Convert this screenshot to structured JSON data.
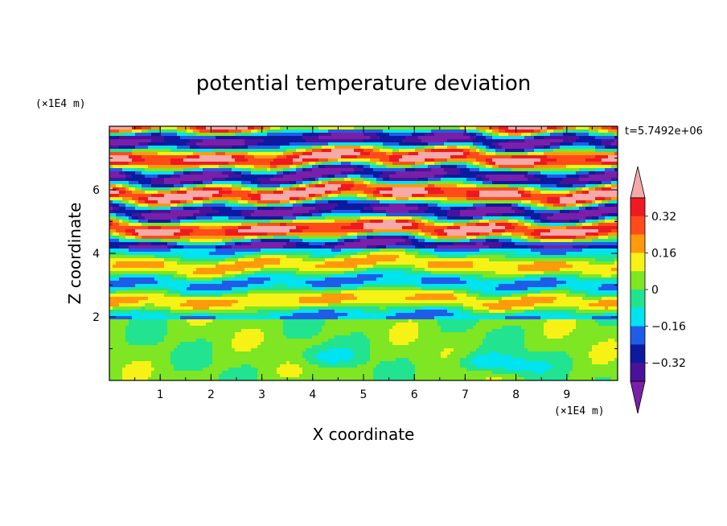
{
  "chart_data": {
    "type": "heatmap",
    "title": "potential temperature deviation",
    "xlabel": "X coordinate",
    "ylabel": "Z coordinate",
    "x_unit": "(×1E4 m)",
    "y_unit": "(×1E4 m)",
    "time_label": "t=5.7492e+06",
    "xlim": [
      0,
      10
    ],
    "ylim": [
      0,
      8
    ],
    "xticks": [
      "1",
      "2",
      "3",
      "4",
      "5",
      "6",
      "7",
      "8",
      "9"
    ],
    "yticks": [
      "2",
      "4",
      "6"
    ],
    "colorbar": {
      "levels": [
        -0.4,
        -0.32,
        -0.24,
        -0.16,
        -0.08,
        0,
        0.08,
        0.16,
        0.24,
        0.32,
        0.4
      ],
      "labels": [
        "0.32",
        "0.16",
        "0",
        "−0.16",
        "−0.32"
      ],
      "colors": [
        "#7a1fa8",
        "#4a129b",
        "#0d1aa0",
        "#1f5de8",
        "#00e3f0",
        "#22e38f",
        "#7ee622",
        "#f6f216",
        "#ff9a0c",
        "#ff4c1a",
        "#ee1a22",
        "#f5a9a9"
      ],
      "extend": "both"
    },
    "description_layers": {
      "lower_layer_top": 1.9,
      "banded_layer_top": 8.0
    }
  }
}
